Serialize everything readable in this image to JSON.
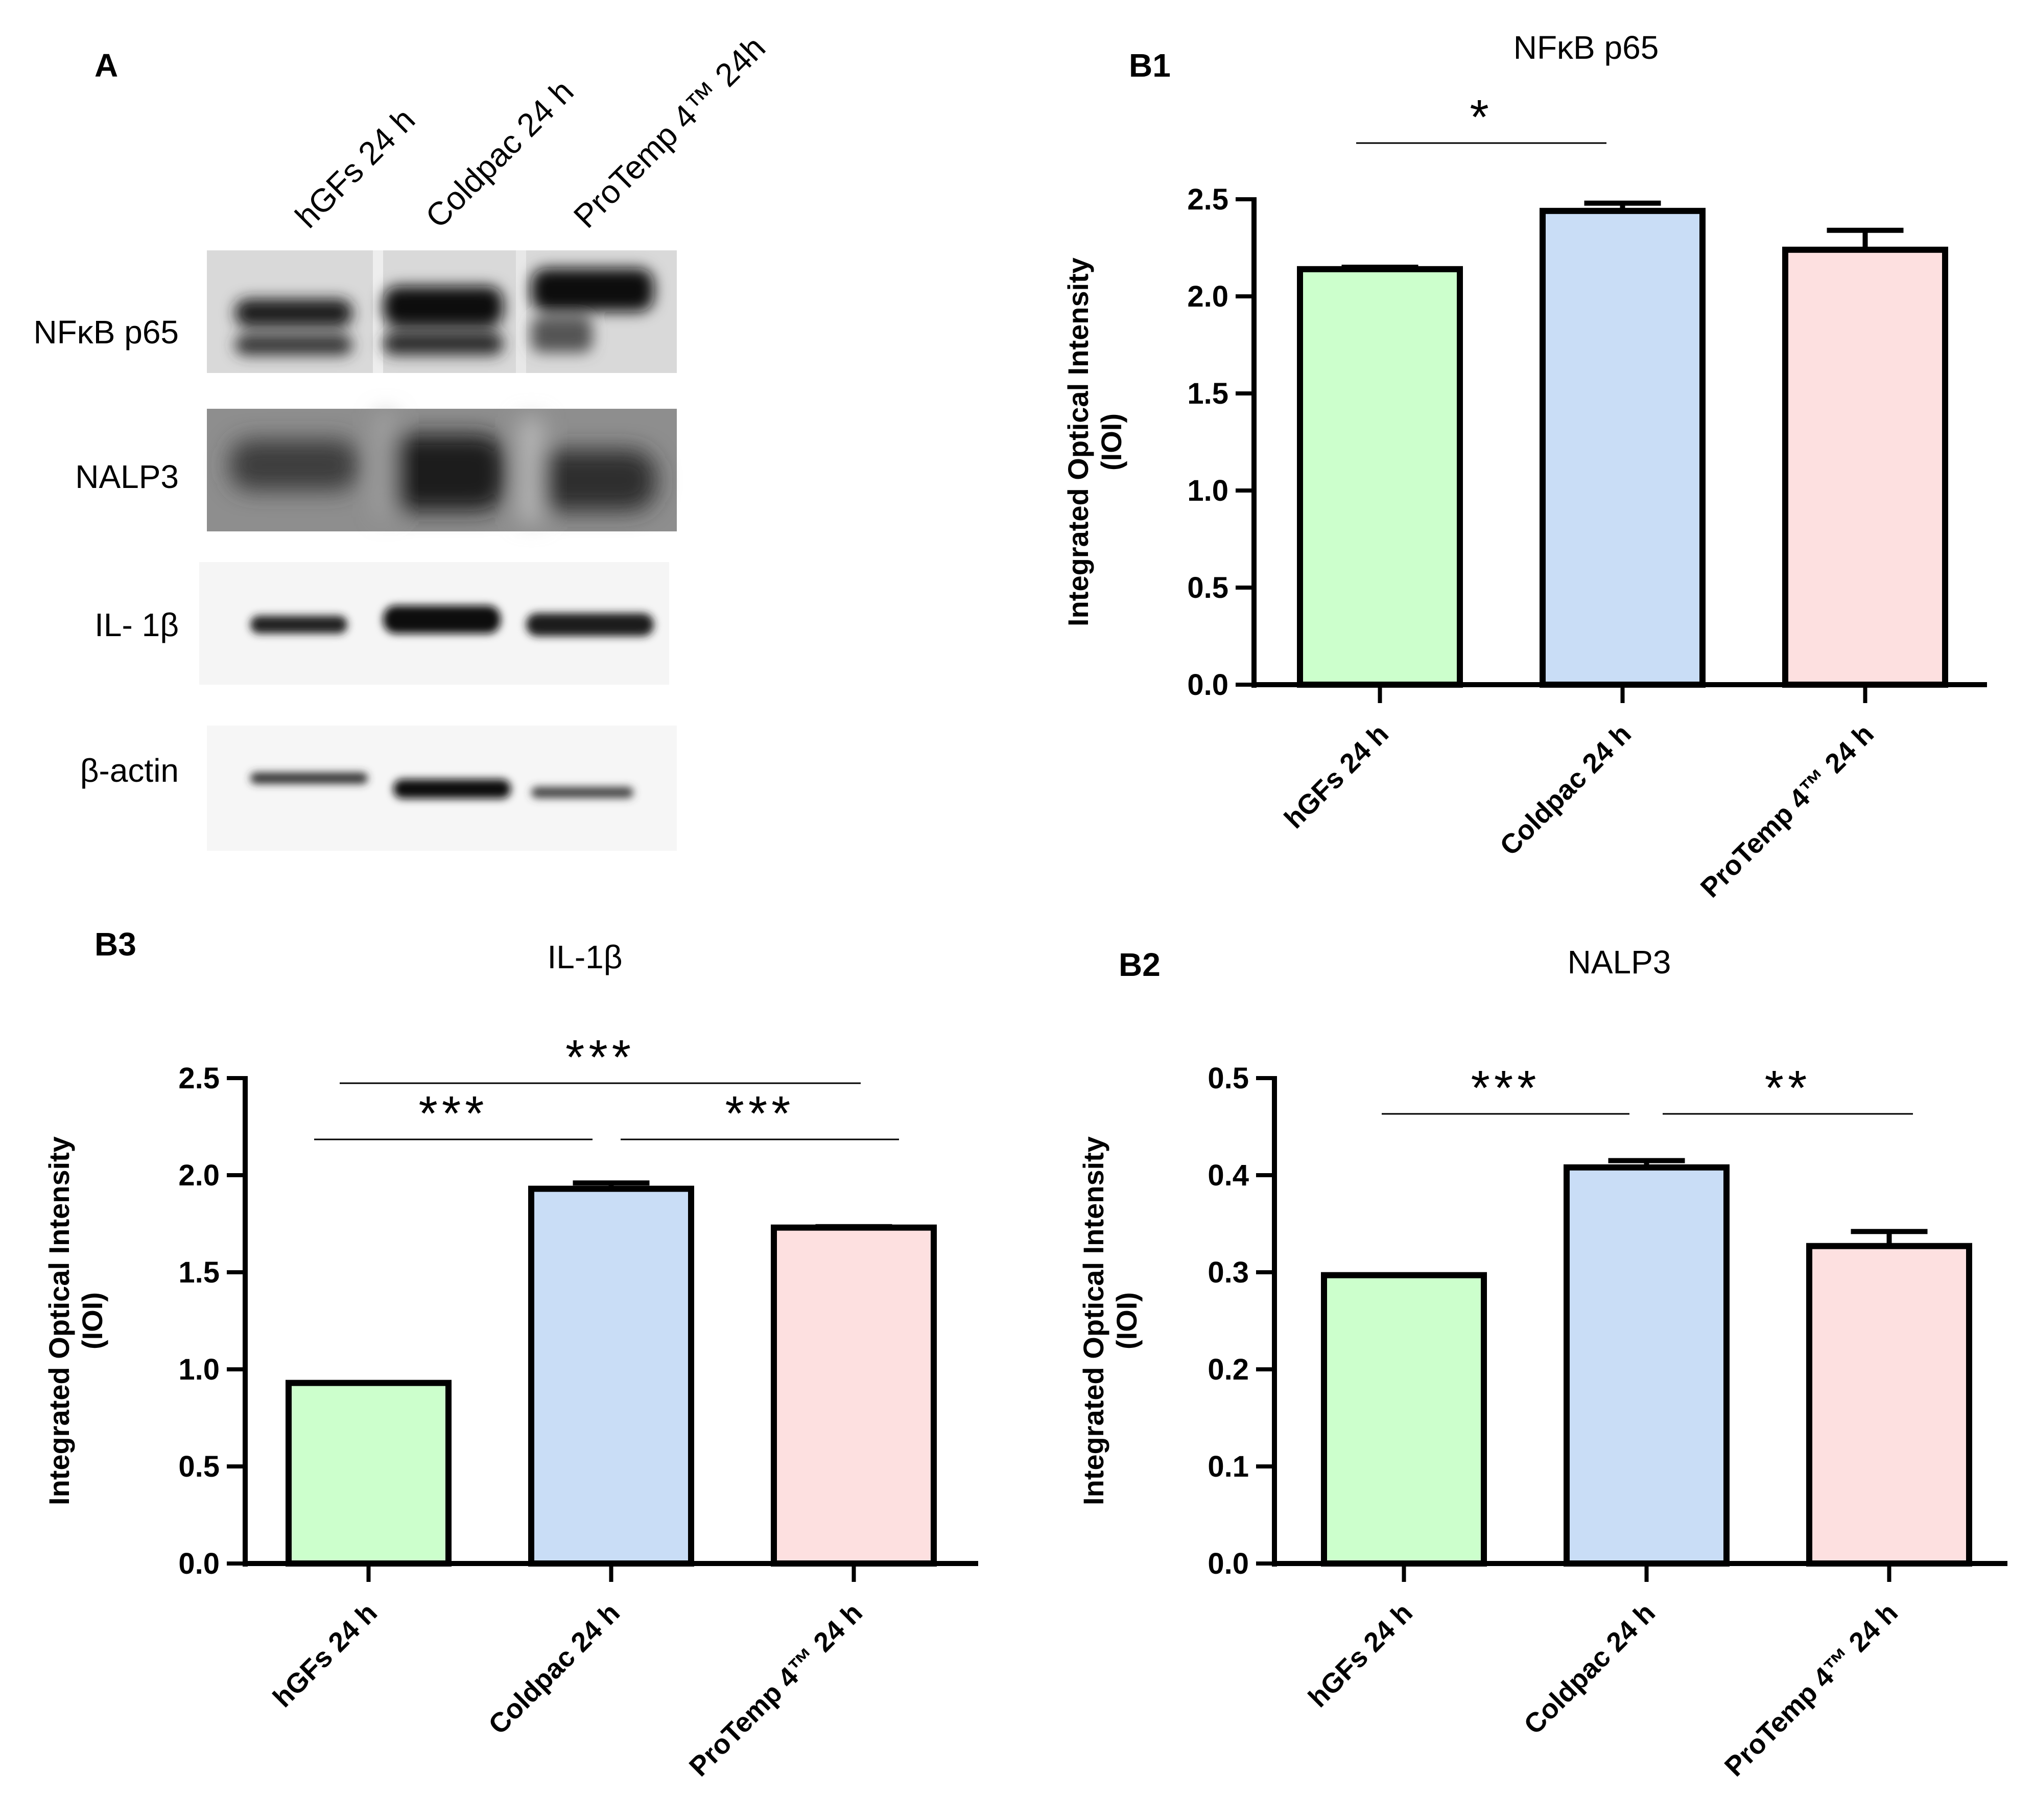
{
  "panels": {
    "A": "A",
    "B1": "B1",
    "B2": "B2",
    "B3": "B3"
  },
  "blot": {
    "lanes": [
      "hGFs 24 h",
      "Coldpac 24 h",
      "ProTemp 4™ 24h"
    ],
    "rows": [
      "NFκB p65",
      "NALP3",
      "IL- 1β",
      "β-actin"
    ]
  },
  "chart_data": [
    {
      "id": "B1",
      "type": "bar",
      "title": "NFκB p65",
      "categories": [
        "hGFs 24 h",
        "Coldpac 24 h",
        "ProTemp 4™ 24 h"
      ],
      "values": [
        2.14,
        2.44,
        2.24
      ],
      "errors": [
        0.01,
        0.04,
        0.1
      ],
      "colors": [
        "#ccffcc",
        "#c9ddf6",
        "#fde0e0"
      ],
      "ylabel": [
        "Integrated  Optical Intensity",
        "(IOI)"
      ],
      "xlabel": "",
      "ylim": [
        0,
        2.5
      ],
      "yticks": [
        0.0,
        0.5,
        1.0,
        1.5,
        2.0,
        2.5
      ],
      "ytick_labels": [
        "0.0",
        "0.5",
        "1.0",
        "1.5",
        "2.0",
        "2.5"
      ],
      "grid": false,
      "significance": [
        {
          "from": 0,
          "to": 1,
          "label": "*"
        }
      ]
    },
    {
      "id": "B3",
      "type": "bar",
      "title": "IL-1β",
      "categories": [
        "hGFs 24 h",
        "Coldpac 24 h",
        "ProTemp 4™ 24 h"
      ],
      "values": [
        0.93,
        1.93,
        1.73
      ],
      "errors": [
        0.0,
        0.03,
        0.005
      ],
      "colors": [
        "#ccffcc",
        "#c9ddf6",
        "#fde0e0"
      ],
      "ylabel": [
        "Integrated  Optical Intensity",
        "(IOI)"
      ],
      "xlabel": "",
      "ylim": [
        0,
        2.5
      ],
      "yticks": [
        0.0,
        0.5,
        1.0,
        1.5,
        2.0,
        2.5
      ],
      "ytick_labels": [
        "0.0",
        "0.5",
        "1.0",
        "1.5",
        "2.0",
        "2.5"
      ],
      "grid": false,
      "significance": [
        {
          "from": 0,
          "to": 2,
          "label": "***"
        },
        {
          "from": 0,
          "to": 1,
          "label": "***"
        },
        {
          "from": 1,
          "to": 2,
          "label": "***"
        }
      ]
    },
    {
      "id": "B2",
      "type": "bar",
      "title": "NALP3",
      "categories": [
        "hGFs 24 h",
        "Coldpac 24 h",
        "ProTemp 4™ 24 h"
      ],
      "values": [
        0.297,
        0.408,
        0.327
      ],
      "errors": [
        0.0,
        0.007,
        0.015
      ],
      "colors": [
        "#ccffcc",
        "#c9ddf6",
        "#fde0e0"
      ],
      "ylabel": [
        "Integrated  Optical Intensity",
        "(IOI)"
      ],
      "xlabel": "",
      "ylim": [
        0,
        0.5
      ],
      "yticks": [
        0.0,
        0.1,
        0.2,
        0.3,
        0.4,
        0.5
      ],
      "ytick_labels": [
        "0.0",
        "0.1",
        "0.2",
        "0.3",
        "0.4",
        "0.5"
      ],
      "grid": false,
      "significance": [
        {
          "from": 0,
          "to": 1,
          "label": "***"
        },
        {
          "from": 1,
          "to": 2,
          "label": "**"
        }
      ]
    }
  ]
}
